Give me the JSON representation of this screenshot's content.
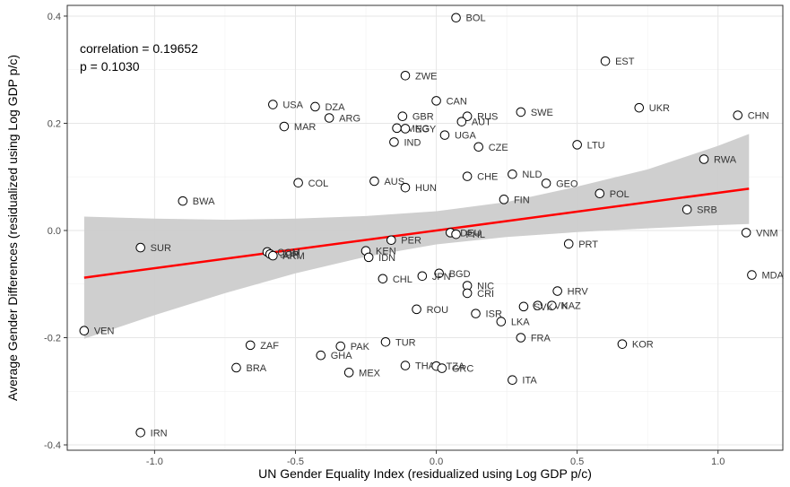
{
  "chart_data": {
    "type": "scatter",
    "xlabel": "UN Gender Equality Index (residualized using Log GDP p/c)",
    "ylabel": "Average Gender Differences (residualized using Log GDP p/c)",
    "xlim": [
      -1.31,
      1.23
    ],
    "ylim": [
      -0.41,
      0.42
    ],
    "x_ticks": [
      "-1.0",
      "-0.5",
      "0.0",
      "0.5",
      "1.0"
    ],
    "y_ticks": [
      "-0.4",
      "-0.2",
      "0.0",
      "0.2",
      "0.4"
    ],
    "x_tick_values": [
      -1.0,
      -0.5,
      0.0,
      0.5,
      1.0
    ],
    "y_tick_values": [
      -0.4,
      -0.2,
      0.0,
      0.2,
      0.4
    ],
    "grid": true,
    "annotations": [
      "correlation = 0.19652",
      "p = 0.1030"
    ],
    "fit_line": {
      "color": "#ff0000",
      "x": [
        -1.25,
        1.11
      ],
      "y": [
        -0.088,
        0.078
      ]
    },
    "confidence_band": {
      "color": "#cccccc",
      "x": [
        -1.25,
        -1.0,
        -0.75,
        -0.5,
        -0.25,
        0.0,
        0.25,
        0.5,
        0.75,
        1.0,
        1.11
      ],
      "lower": [
        -0.202,
        -0.158,
        -0.117,
        -0.08,
        -0.049,
        -0.026,
        -0.012,
        -0.003,
        0.004,
        0.01,
        0.012
      ],
      "upper": [
        0.026,
        0.022,
        0.02,
        0.022,
        0.027,
        0.036,
        0.053,
        0.082,
        0.114,
        0.158,
        0.18
      ]
    },
    "points": [
      {
        "label": "BOL",
        "x": 0.07,
        "y": 0.397
      },
      {
        "label": "EST",
        "x": 0.6,
        "y": 0.316
      },
      {
        "label": "ZWE",
        "x": -0.11,
        "y": 0.289
      },
      {
        "label": "CAN",
        "x": 0.0,
        "y": 0.242
      },
      {
        "label": "USA",
        "x": -0.58,
        "y": 0.235
      },
      {
        "label": "DZA",
        "x": -0.43,
        "y": 0.231
      },
      {
        "label": "UKR",
        "x": 0.72,
        "y": 0.229
      },
      {
        "label": "SWE",
        "x": 0.3,
        "y": 0.221
      },
      {
        "label": "CHN",
        "x": 1.07,
        "y": 0.215
      },
      {
        "label": "GBR",
        "x": -0.12,
        "y": 0.213
      },
      {
        "label": "RUS",
        "x": 0.11,
        "y": 0.213
      },
      {
        "label": "ARG",
        "x": -0.38,
        "y": 0.21
      },
      {
        "label": "AUT",
        "x": 0.09,
        "y": 0.203
      },
      {
        "label": "MAR",
        "x": -0.54,
        "y": 0.194
      },
      {
        "label": "MNG",
        "x": -0.14,
        "y": 0.191
      },
      {
        "label": "EGY",
        "x": -0.11,
        "y": 0.19
      },
      {
        "label": "UGA",
        "x": 0.03,
        "y": 0.178
      },
      {
        "label": "IND",
        "x": -0.15,
        "y": 0.165
      },
      {
        "label": "LTU",
        "x": 0.5,
        "y": 0.16
      },
      {
        "label": "CZE",
        "x": 0.15,
        "y": 0.156
      },
      {
        "label": "RWA",
        "x": 0.95,
        "y": 0.133
      },
      {
        "label": "NLD",
        "x": 0.27,
        "y": 0.105
      },
      {
        "label": "CHE",
        "x": 0.11,
        "y": 0.101
      },
      {
        "label": "AUS",
        "x": -0.22,
        "y": 0.092
      },
      {
        "label": "COL",
        "x": -0.49,
        "y": 0.089
      },
      {
        "label": "GEO",
        "x": 0.39,
        "y": 0.088
      },
      {
        "label": "HUN",
        "x": -0.11,
        "y": 0.08
      },
      {
        "label": "POL",
        "x": 0.58,
        "y": 0.069
      },
      {
        "label": "FIN",
        "x": 0.24,
        "y": 0.058
      },
      {
        "label": "BWA",
        "x": -0.9,
        "y": 0.055
      },
      {
        "label": "SRB",
        "x": 0.89,
        "y": 0.039
      },
      {
        "label": "DEU",
        "x": 0.05,
        "y": -0.004
      },
      {
        "label": "PHL",
        "x": 0.07,
        "y": -0.007
      },
      {
        "label": "VNM",
        "x": 1.1,
        "y": -0.004
      },
      {
        "label": "PER",
        "x": -0.16,
        "y": -0.018
      },
      {
        "label": "PRT",
        "x": 0.47,
        "y": -0.025
      },
      {
        "label": "SUR",
        "x": -1.05,
        "y": -0.032
      },
      {
        "label": "KEN",
        "x": -0.25,
        "y": -0.038
      },
      {
        "label": "IDN",
        "x": -0.24,
        "y": -0.05
      },
      {
        "label": "COM",
        "x": -0.6,
        "y": -0.04
      },
      {
        "label": "JOR",
        "x": -0.59,
        "y": -0.044
      },
      {
        "label": "ARM",
        "x": -0.58,
        "y": -0.047
      },
      {
        "label": "BGD",
        "x": 0.01,
        "y": -0.08
      },
      {
        "label": "MDA",
        "x": 1.12,
        "y": -0.083
      },
      {
        "label": "JPN",
        "x": -0.05,
        "y": -0.085
      },
      {
        "label": "CHL",
        "x": -0.19,
        "y": -0.09
      },
      {
        "label": "NIC",
        "x": 0.11,
        "y": -0.103
      },
      {
        "label": "HRV",
        "x": 0.43,
        "y": -0.113
      },
      {
        "label": "CRI",
        "x": 0.11,
        "y": -0.117
      },
      {
        "label": "SVN",
        "x": 0.36,
        "y": -0.14
      },
      {
        "label": "KAZ",
        "x": 0.41,
        "y": -0.14
      },
      {
        "label": "SVK",
        "x": 0.31,
        "y": -0.142
      },
      {
        "label": "ROU",
        "x": -0.07,
        "y": -0.147
      },
      {
        "label": "ISR",
        "x": 0.14,
        "y": -0.155
      },
      {
        "label": "LKA",
        "x": 0.23,
        "y": -0.17
      },
      {
        "label": "VEN",
        "x": -1.25,
        "y": -0.187
      },
      {
        "label": "FRA",
        "x": 0.3,
        "y": -0.2
      },
      {
        "label": "TUR",
        "x": -0.18,
        "y": -0.208
      },
      {
        "label": "KOR",
        "x": 0.66,
        "y": -0.212
      },
      {
        "label": "ZAF",
        "x": -0.66,
        "y": -0.214
      },
      {
        "label": "PAK",
        "x": -0.34,
        "y": -0.216
      },
      {
        "label": "GHA",
        "x": -0.41,
        "y": -0.233
      },
      {
        "label": "BRA",
        "x": -0.71,
        "y": -0.256
      },
      {
        "label": "THA",
        "x": -0.11,
        "y": -0.252
      },
      {
        "label": "TZA",
        "x": 0.0,
        "y": -0.253
      },
      {
        "label": "GRC",
        "x": 0.02,
        "y": -0.257
      },
      {
        "label": "MEX",
        "x": -0.31,
        "y": -0.265
      },
      {
        "label": "ITA",
        "x": 0.27,
        "y": -0.279
      },
      {
        "label": "IRN",
        "x": -1.05,
        "y": -0.377
      }
    ]
  }
}
